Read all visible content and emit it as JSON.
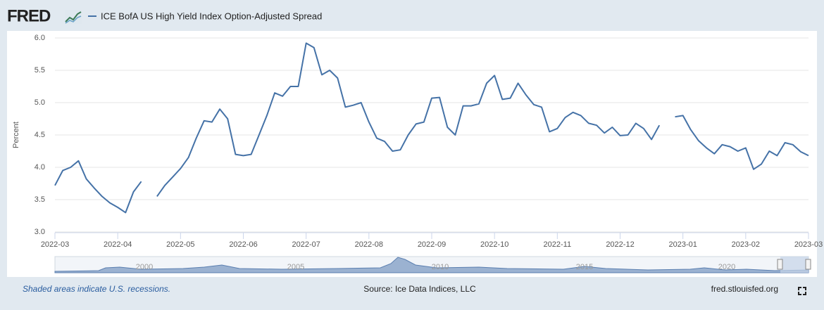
{
  "header": {
    "logo": "FRED"
  },
  "chart_data": {
    "type": "line",
    "y_label": "Percent",
    "categories": [
      "2022-03",
      null,
      null,
      null,
      null,
      null,
      null,
      null,
      "2022-04",
      null,
      null,
      null,
      null,
      null,
      null,
      null,
      "2022-05",
      null,
      null,
      null,
      null,
      null,
      null,
      null,
      "2022-06",
      null,
      null,
      null,
      null,
      null,
      null,
      null,
      "2022-07",
      null,
      null,
      null,
      null,
      null,
      null,
      null,
      "2022-08",
      null,
      null,
      null,
      null,
      null,
      null,
      null,
      "2022-09",
      null,
      null,
      null,
      null,
      null,
      null,
      null,
      "2022-10",
      null,
      null,
      null,
      null,
      null,
      null,
      null,
      "2022-11",
      null,
      null,
      null,
      null,
      null,
      null,
      null,
      "2022-12",
      null,
      null,
      null,
      null,
      null,
      null,
      null,
      "2023-01",
      null,
      null,
      null,
      null,
      null,
      null,
      null,
      "2023-02",
      null,
      null,
      null,
      null,
      null,
      null,
      null,
      "2023-03"
    ],
    "series": [
      {
        "name": "ICE BofA US High Yield Index Option-Adjusted Spread",
        "color": "#4572a7",
        "values": [
          3.72,
          3.95,
          4.0,
          4.1,
          3.82,
          3.68,
          3.55,
          3.45,
          3.38,
          3.3,
          3.62,
          3.78,
          null,
          3.55,
          3.72,
          3.85,
          3.98,
          4.15,
          4.45,
          4.72,
          4.7,
          4.9,
          4.75,
          4.2,
          4.18,
          4.2,
          4.5,
          4.8,
          5.15,
          5.1,
          5.25,
          5.25,
          5.92,
          5.85,
          5.43,
          5.5,
          5.38,
          4.93,
          4.96,
          5.0,
          4.7,
          4.45,
          4.4,
          4.25,
          4.27,
          4.5,
          4.67,
          4.7,
          5.07,
          5.08,
          4.62,
          4.5,
          4.95,
          4.95,
          4.98,
          5.3,
          5.42,
          5.05,
          5.07,
          5.3,
          5.12,
          4.97,
          4.93,
          4.55,
          4.6,
          4.77,
          4.85,
          4.8,
          4.68,
          4.65,
          4.53,
          4.62,
          4.49,
          4.5,
          4.68,
          4.6,
          4.43,
          4.65,
          null,
          4.78,
          4.8,
          4.58,
          4.41,
          4.3,
          4.21,
          4.35,
          4.32,
          4.25,
          4.3,
          3.97,
          4.05,
          4.25,
          4.18,
          4.38,
          4.35,
          4.24,
          4.18
        ]
      }
    ],
    "ylim": [
      3,
      6
    ],
    "yticks": [
      {
        "value": 3,
        "label": "3.0"
      },
      3.5,
      {
        "value": 4,
        "label": "4.0"
      },
      4.5,
      {
        "value": 5,
        "label": "5.0"
      },
      5.5,
      {
        "value": 6,
        "label": "6.0"
      }
    ],
    "grid": true,
    "navigator_labels": [
      "2000",
      "2005",
      "2010",
      "2015",
      "2020"
    ]
  },
  "footer": {
    "note": "Shaded areas indicate U.S. recessions.",
    "source": "Source: Ice Data Indices, LLC",
    "site": "fred.stlouisfed.org"
  }
}
